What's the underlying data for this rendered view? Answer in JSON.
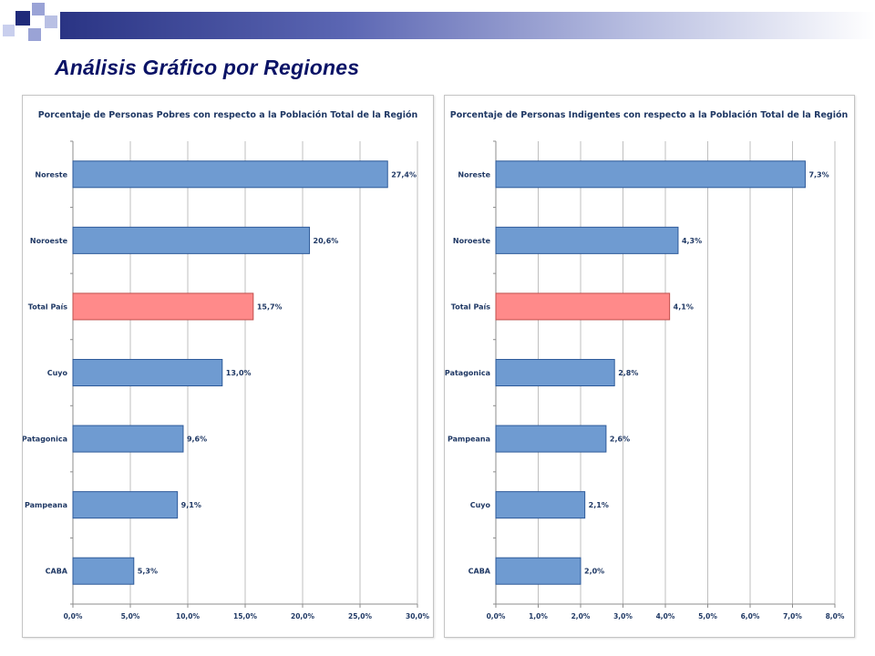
{
  "slide": {
    "title": "Análisis Gráfico por Regiones"
  },
  "colors": {
    "header_dark": "#1f2a7a",
    "header_light": "#9aa3d6",
    "title": "#0b1366",
    "bar_default_fill": "#6f9bd1",
    "bar_default_stroke": "#2e5a99",
    "bar_highlight_fill": "#ff8a8a",
    "bar_highlight_stroke": "#c0504d",
    "gridline": "#bfbfbf",
    "text": "#1f3864"
  },
  "chart_data": [
    {
      "type": "bar",
      "orientation": "horizontal",
      "title": "Porcentaje de Personas Pobres con respecto a la Población Total de la Región",
      "categories": [
        "Noreste",
        "Noroeste",
        "Total País",
        "Cuyo",
        "Patagonica",
        "Pampeana",
        "CABA"
      ],
      "values": [
        27.4,
        20.6,
        15.7,
        13.0,
        9.6,
        9.1,
        5.3
      ],
      "value_labels": [
        "27,4%",
        "20,6%",
        "15,7%",
        "13,0%",
        "9,6%",
        "9,1%",
        "5,3%"
      ],
      "highlight": [
        false,
        false,
        true,
        false,
        false,
        false,
        false
      ],
      "xlim": [
        0,
        30
      ],
      "xticks": [
        0,
        5,
        10,
        15,
        20,
        25,
        30
      ],
      "xtick_labels": [
        "0,0%",
        "5,0%",
        "10,0%",
        "15,0%",
        "20,0%",
        "25,0%",
        "30,0%"
      ],
      "xlabel": "",
      "ylabel": "",
      "grid": "vertical"
    },
    {
      "type": "bar",
      "orientation": "horizontal",
      "title": "Porcentaje de Personas Indigentes con respecto a la Población Total de la Región",
      "categories": [
        "Noreste",
        "Noroeste",
        "Total País",
        "Patagonica",
        "Pampeana",
        "Cuyo",
        "CABA"
      ],
      "values": [
        7.3,
        4.3,
        4.1,
        2.8,
        2.6,
        2.1,
        2.0
      ],
      "value_labels": [
        "7,3%",
        "4,3%",
        "4,1%",
        "2,8%",
        "2,6%",
        "2,1%",
        "2,0%"
      ],
      "highlight": [
        false,
        false,
        true,
        false,
        false,
        false,
        false
      ],
      "xlim": [
        0,
        8
      ],
      "xticks": [
        0,
        1,
        2,
        3,
        4,
        5,
        6,
        7,
        8
      ],
      "xtick_labels": [
        "0,0%",
        "1,0%",
        "2,0%",
        "3,0%",
        "4,0%",
        "5,0%",
        "6,0%",
        "7,0%",
        "8,0%"
      ],
      "xlabel": "",
      "ylabel": "",
      "grid": "vertical"
    }
  ]
}
